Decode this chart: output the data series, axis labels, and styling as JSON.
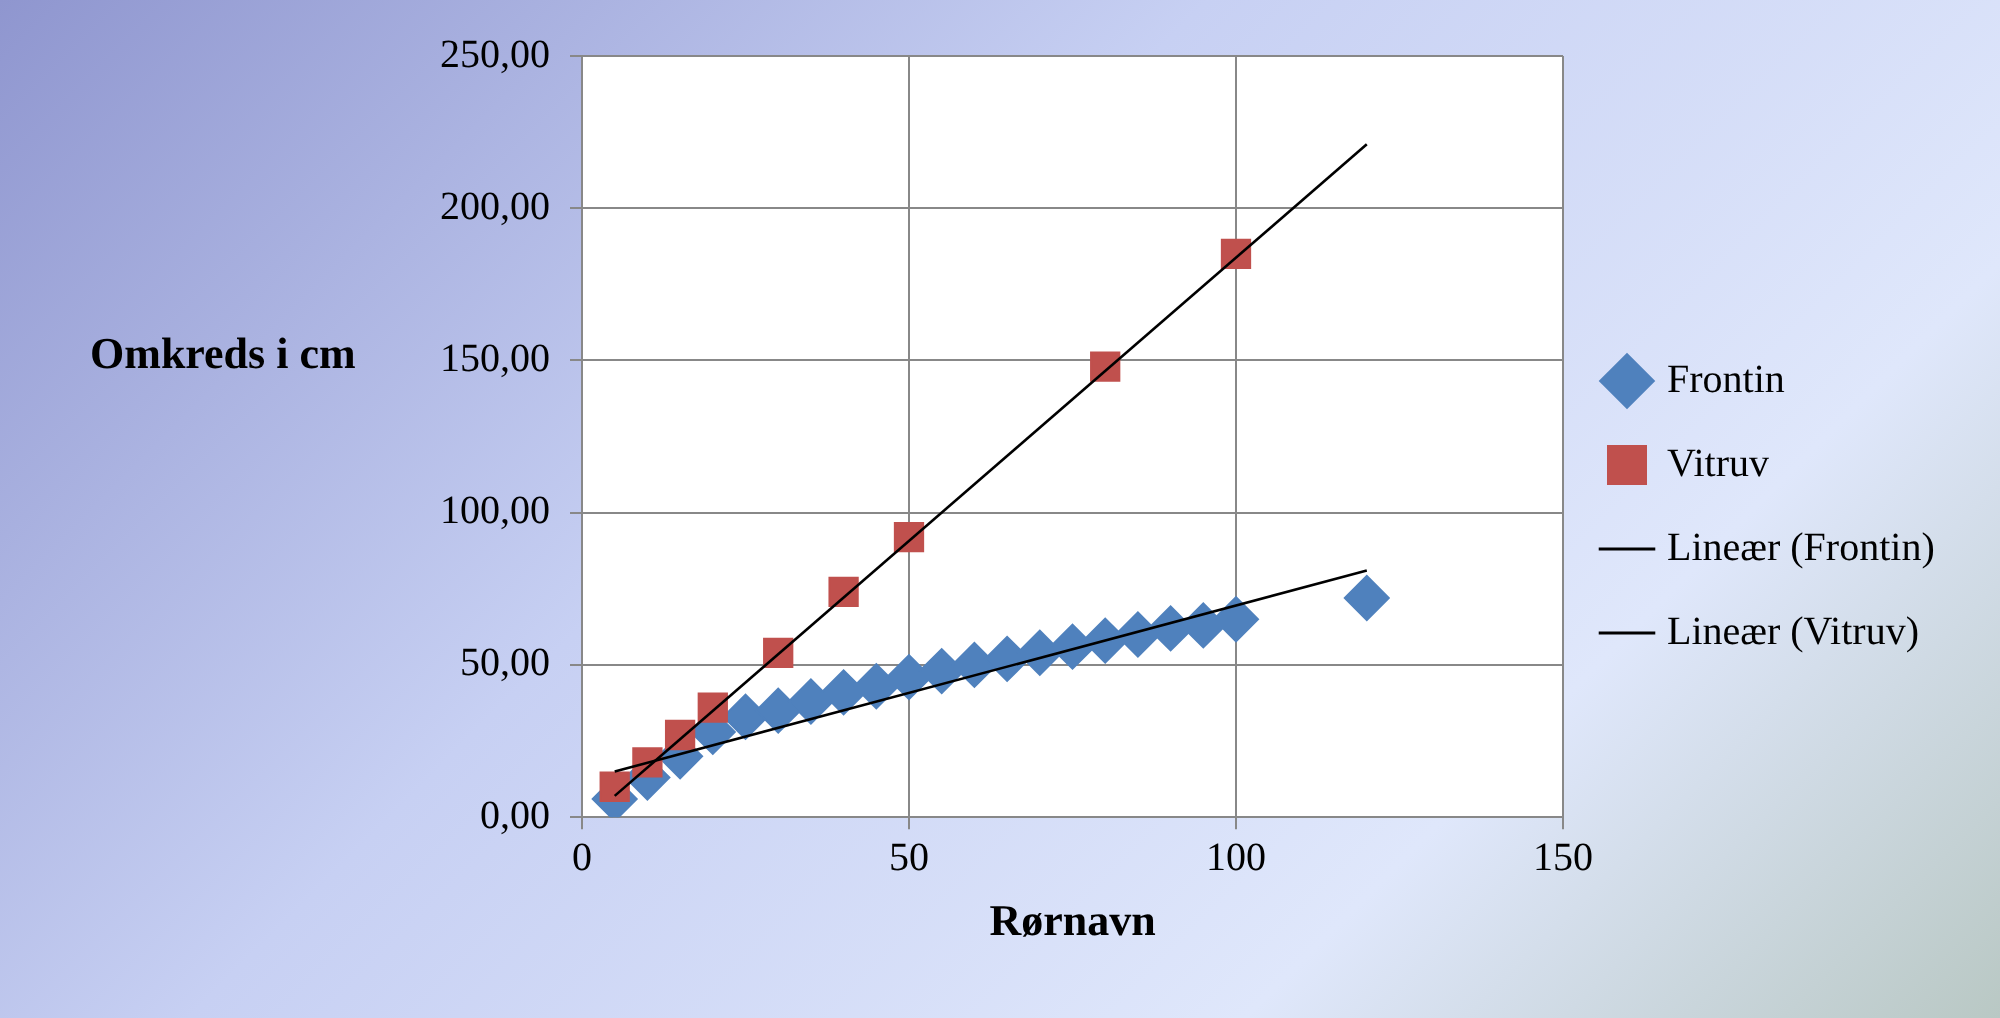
{
  "chart_data": {
    "type": "scatter",
    "xlabel": "Rørnavn",
    "ylabel": "Omkreds i cm",
    "xlim": [
      0,
      150
    ],
    "xticks": [
      0,
      50,
      100,
      150
    ],
    "ylim": [
      0,
      250
    ],
    "yticks": [
      {
        "value": 0,
        "label": "0,00"
      },
      {
        "value": 50,
        "label": "50,00"
      },
      {
        "value": 100,
        "label": "100,00"
      },
      {
        "value": 150,
        "label": "150,00"
      },
      {
        "value": 200,
        "label": "200,00"
      },
      {
        "value": 250,
        "label": "250,00"
      }
    ],
    "grid": true,
    "legend": "right",
    "series": [
      {
        "name": "Frontin",
        "marker": "diamond",
        "color": "#4f81bd",
        "x": [
          5,
          10,
          15,
          20,
          25,
          30,
          35,
          40,
          45,
          50,
          55,
          60,
          65,
          70,
          75,
          80,
          85,
          90,
          95,
          100,
          120
        ],
        "values": [
          6,
          13,
          20,
          28,
          33,
          35,
          38,
          41,
          43,
          46,
          48,
          50,
          52,
          54,
          56,
          58,
          60,
          62,
          63,
          65,
          72
        ]
      },
      {
        "name": "Vitruv",
        "marker": "square",
        "color": "#c0504d",
        "x": [
          5,
          10,
          15,
          20,
          30,
          40,
          50,
          80,
          100
        ],
        "values": [
          10,
          18,
          27,
          36,
          54,
          74,
          92,
          148,
          185
        ]
      },
      {
        "name": "Lineær (Frontin)",
        "type": "line",
        "marker": "none",
        "color": "#000000",
        "x": [
          5,
          120
        ],
        "values": [
          15,
          81
        ]
      },
      {
        "name": "Lineær (Vitruv)",
        "type": "line",
        "marker": "none",
        "color": "#000000",
        "x": [
          5,
          120
        ],
        "values": [
          7,
          221
        ]
      }
    ]
  }
}
